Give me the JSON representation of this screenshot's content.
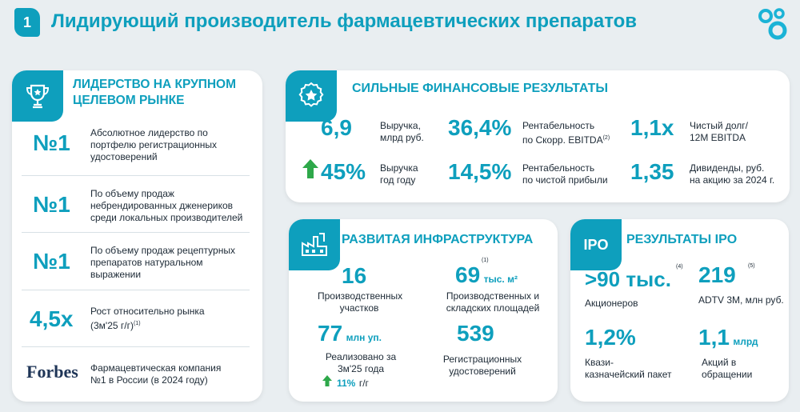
{
  "header": {
    "number": "1",
    "title": "Лидирующий производитель фармацевтических препаратов"
  },
  "leadership": {
    "title_line1": "ЛИДЕРСТВО НА КРУПНОМ",
    "title_line2": "ЦЕЛЕВОМ РЫНКЕ",
    "items": [
      {
        "value": "№1",
        "text1": "Абсолютное лидерство по",
        "text2": "портфелю регистрационных",
        "text3": "удостоверений"
      },
      {
        "value": "№1",
        "text1": "По объему продаж",
        "text2": "небрендированных дженериков",
        "text3": "среди локальных производителей"
      },
      {
        "value": "№1",
        "text1": "По объему продаж рецептурных",
        "text2": "препаратов натуральном",
        "text3": "выражении"
      },
      {
        "value": "4,5x",
        "text1": "Рост относительно рынка",
        "text2": "(3м'25 г/г)",
        "note": "(1)"
      }
    ],
    "forbes": {
      "logo": "Forbes",
      "text1": "Фармацевтическая компания",
      "text2": "№1 в России (в 2024 году)"
    }
  },
  "financial": {
    "title": "СИЛЬНЫЕ ФИНАНСОВЫЕ РЕЗУЛЬТАТЫ",
    "items": [
      {
        "value": "6,9",
        "label1": "Выручка,",
        "label2": "млрд руб."
      },
      {
        "value": "36,4%",
        "label1": "Рентабельность",
        "label2": "по Скорр. EBITDA",
        "note": "(2)"
      },
      {
        "value": "1,1x",
        "label1": "Чистый долг/",
        "label2": "12M EBITDA"
      },
      {
        "value": "45%",
        "label1": "Выручка",
        "label2": "год году"
      },
      {
        "value": "14,5%",
        "label1": "Рентабельность",
        "label2": "по чистой прибыли"
      },
      {
        "value": "1,35",
        "label1": "Дивиденды, руб.",
        "label2": "на акцию за 2024 г."
      }
    ]
  },
  "infrastructure": {
    "title": "РАЗВИТАЯ ИНФРАСТРУКТУРА",
    "items": [
      {
        "value": "16",
        "label1": "Производственных",
        "label2": "участков"
      },
      {
        "value": "69",
        "unit": "тыс. м²",
        "note": "(1)",
        "label1": "Производственных и",
        "label2": "складских площадей"
      },
      {
        "value": "77",
        "unit": "млн уп.",
        "label1": "Реализовано за",
        "label2": "3м'25 года",
        "growth": "11%",
        "growth_unit": "г/г"
      },
      {
        "value": "539",
        "label1": "Регистрационных",
        "label2": "удостоверений"
      }
    ]
  },
  "ipo": {
    "badge": "IPO",
    "title": "РЕЗУЛЬТАТЫ IPO",
    "items": [
      {
        "value": ">90 тыс.",
        "note": "(4)",
        "label1": "Акционеров",
        "label2": ""
      },
      {
        "value": "219",
        "note": "(5)",
        "label1": "ADTV 3M, млн руб.",
        "label2": ""
      },
      {
        "value": "1,2%",
        "label1": "Квази-",
        "label2": "казначейский пакет"
      },
      {
        "value": "1,1",
        "unit": "млрд",
        "label1": "Акций в",
        "label2": "обращении"
      }
    ]
  },
  "colors": {
    "accent": "#0e9fbd",
    "green": "#2ea84a",
    "background": "#e9eef1",
    "card": "#ffffff"
  }
}
